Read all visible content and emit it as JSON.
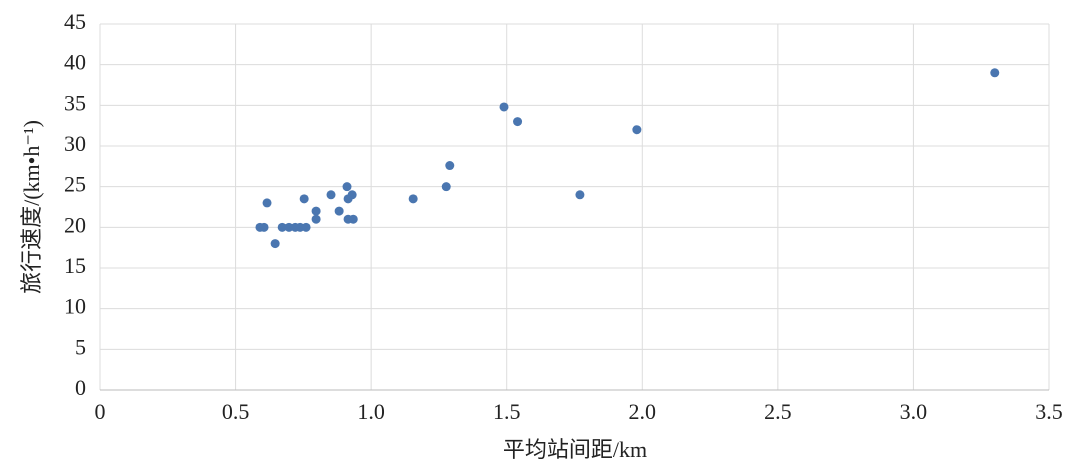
{
  "chart_data": {
    "type": "scatter",
    "x_label": "平均站间距/km",
    "y_label": "旅行速度/(km•h⁻¹)",
    "color": "#4a76b0",
    "x": [
      0.59,
      0.605,
      0.616,
      0.646,
      0.672,
      0.697,
      0.72,
      0.738,
      0.76,
      0.753,
      0.797,
      0.797,
      0.852,
      0.882,
      0.911,
      0.915,
      0.915,
      0.934,
      0.93,
      1.155,
      1.277,
      1.29,
      1.49,
      1.54,
      1.77,
      1.98,
      3.3
    ],
    "values": [
      20,
      20,
      23,
      18,
      20,
      20,
      20,
      20,
      20,
      23.5,
      22,
      21,
      24,
      22,
      25,
      23.5,
      21,
      21,
      24,
      23.5,
      25,
      27.6,
      34.8,
      33,
      24,
      32,
      39
    ],
    "xlim": [
      0,
      3.5
    ],
    "xticks": [
      0,
      0.5,
      {
        "value": 1,
        "label": "1.0"
      },
      1.5,
      {
        "value": 2,
        "label": "2.0"
      },
      2.5,
      {
        "value": 3,
        "label": "3.0"
      },
      3.5
    ],
    "ylim": [
      0,
      45
    ],
    "yticks": [
      0,
      5,
      10,
      15,
      20,
      25,
      30,
      35,
      40,
      45
    ],
    "grid": true
  }
}
